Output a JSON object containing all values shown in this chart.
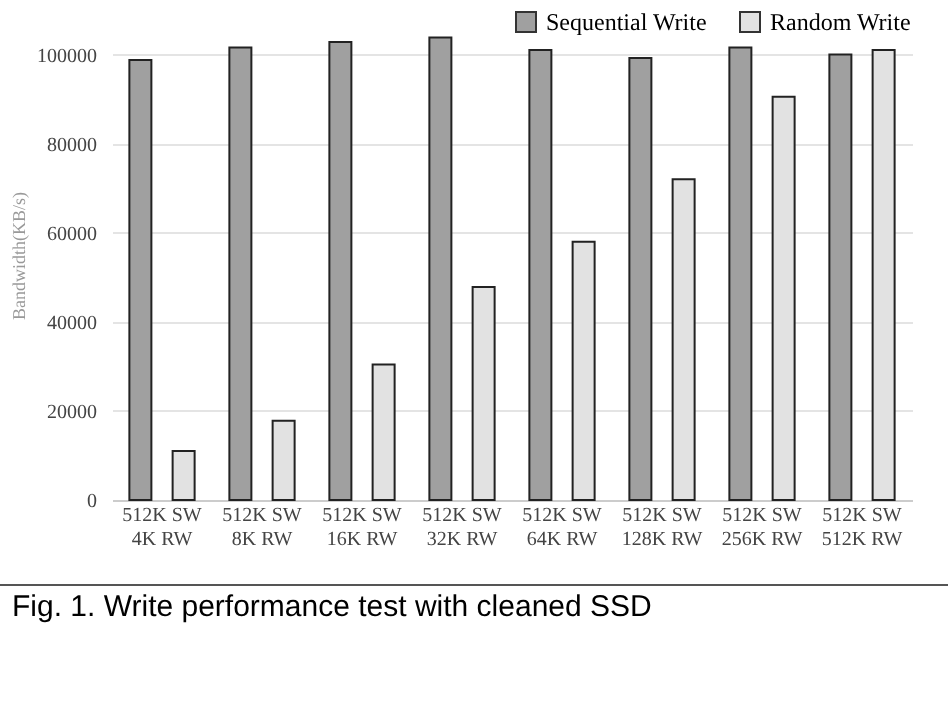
{
  "chart_data": {
    "type": "bar",
    "ylabel": "Bandwidth(KB/s)",
    "categories": [
      "512K SW 4K RW",
      "512K SW 8K RW",
      "512K SW 16K RW",
      "512K SW 32K RW",
      "512K SW 64K RW",
      "512K SW 128K RW",
      "512K SW 256K RW",
      "512K SW 512K RW"
    ],
    "series": [
      {
        "name": "Sequential Write",
        "color": "#a0a0a0",
        "values": [
          98800,
          101600,
          102800,
          103800,
          101000,
          99200,
          101600,
          100000
        ]
      },
      {
        "name": "Random Write",
        "color": "#e2e2e2",
        "values": [
          11000,
          17800,
          30400,
          47800,
          58000,
          72000,
          90500,
          101000
        ]
      }
    ],
    "ylim": [
      0,
      110000
    ],
    "yticks": [
      0,
      20000,
      40000,
      60000,
      80000,
      100000
    ],
    "grid": "y",
    "legend": "top right",
    "annotations": [
      "Fig. 1. Write performance test with cleaned SSD"
    ]
  }
}
